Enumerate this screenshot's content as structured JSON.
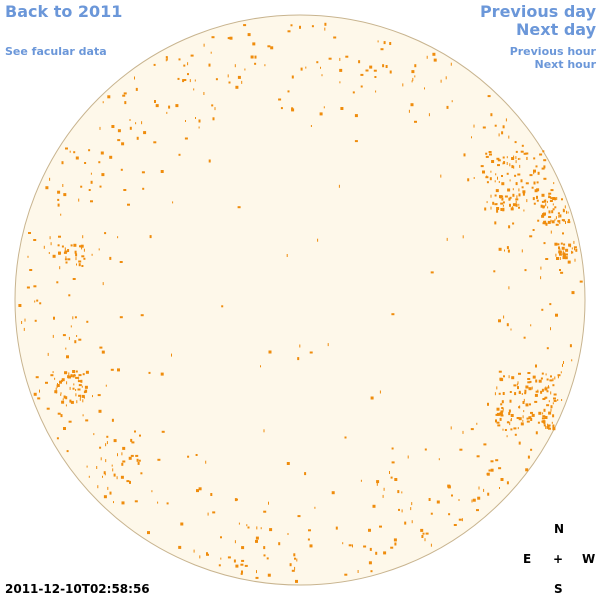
{
  "links": {
    "back": "Back to 2011",
    "facular": "See facular data",
    "prev_day": "Previous day",
    "next_day": "Next day",
    "prev_hour": "Previous hour",
    "next_hour": "Next hour"
  },
  "timestamp": "2011-12-10T02:58:56",
  "compass": {
    "n": "N",
    "e": "E",
    "center": "+",
    "w": "W",
    "s": "S"
  }
}
